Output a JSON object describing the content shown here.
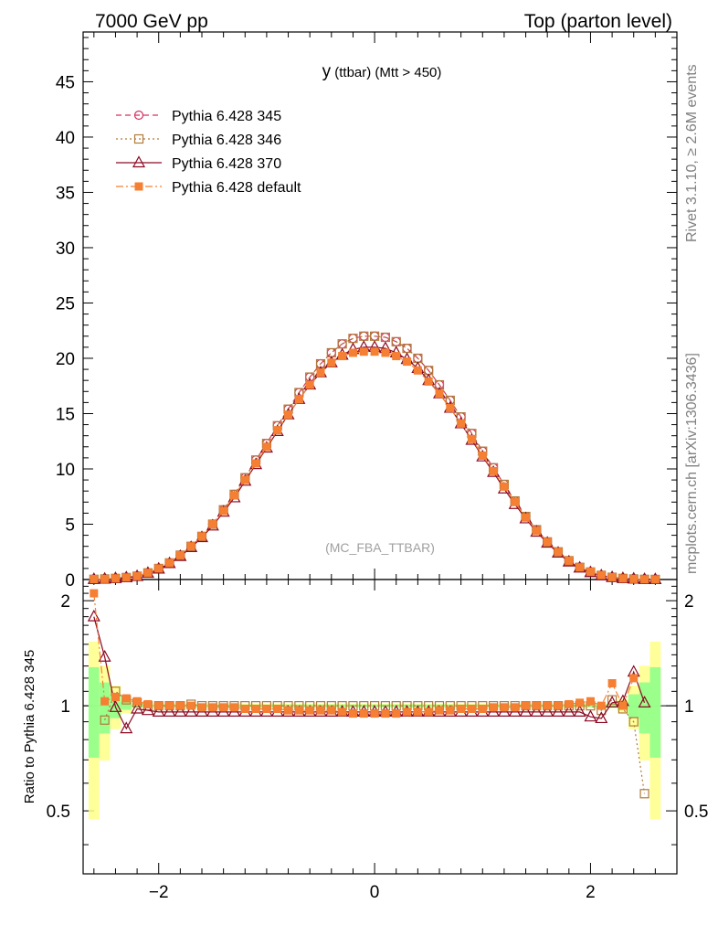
{
  "header": {
    "left": "7000 GeV pp",
    "right": "Top (parton level)"
  },
  "title_main": "y",
  "title_sub": " (ttbar) (Mtt > 450)",
  "watermark": "(MC_FBA_TTBAR)",
  "side_label_top": "Rivet 3.1.10, ≥ 2.6M events",
  "side_label_bottom": "mcplots.cern.ch [arXiv:1306.3436]",
  "ratio_ylabel": "Ratio to Pythia 6.428 345",
  "chart_data": [
    {
      "type": "line",
      "panel": "main",
      "xlim": [
        -2.7,
        2.8
      ],
      "ylim": [
        0,
        49.5
      ],
      "y_ticks": [
        0,
        5,
        10,
        15,
        20,
        25,
        30,
        35,
        40,
        45
      ],
      "legend_position": "top-left",
      "x": [
        -2.6,
        -2.5,
        -2.4,
        -2.3,
        -2.2,
        -2.1,
        -2.0,
        -1.9,
        -1.8,
        -1.7,
        -1.6,
        -1.5,
        -1.4,
        -1.3,
        -1.2,
        -1.1,
        -1.0,
        -0.9,
        -0.8,
        -0.7,
        -0.6,
        -0.5,
        -0.4,
        -0.3,
        -0.2,
        -0.1,
        0.0,
        0.1,
        0.2,
        0.3,
        0.4,
        0.5,
        0.6,
        0.7,
        0.8,
        0.9,
        1.0,
        1.1,
        1.2,
        1.3,
        1.4,
        1.5,
        1.6,
        1.7,
        1.8,
        1.9,
        2.0,
        2.1,
        2.2,
        2.3,
        2.4,
        2.5,
        2.6
      ],
      "series": [
        {
          "name": "Pythia 6.428 345",
          "color": "#d6305f",
          "marker": "circle-open",
          "dash": "6,4",
          "values": [
            0.02,
            0.05,
            0.1,
            0.18,
            0.3,
            0.6,
            1.0,
            1.5,
            2.2,
            3.0,
            3.9,
            5.0,
            6.3,
            7.7,
            9.2,
            10.8,
            12.3,
            13.9,
            15.4,
            16.9,
            18.3,
            19.5,
            20.5,
            21.3,
            21.8,
            22.0,
            22.0,
            21.9,
            21.5,
            20.9,
            20.0,
            18.9,
            17.6,
            16.2,
            14.7,
            13.2,
            11.6,
            10.1,
            8.6,
            7.1,
            5.7,
            4.5,
            3.4,
            2.5,
            1.7,
            1.1,
            0.68,
            0.38,
            0.2,
            0.1,
            0.05,
            0.02,
            0.01
          ]
        },
        {
          "name": "Pythia 6.428 346",
          "color": "#b07a3a",
          "marker": "square-open",
          "dash": "2,3",
          "values": [
            0.02,
            0.05,
            0.1,
            0.18,
            0.3,
            0.6,
            1.0,
            1.5,
            2.2,
            3.0,
            3.9,
            5.0,
            6.3,
            7.7,
            9.2,
            10.8,
            12.3,
            13.9,
            15.4,
            16.9,
            18.3,
            19.5,
            20.5,
            21.3,
            21.8,
            22.0,
            22.0,
            21.9,
            21.5,
            20.9,
            20.0,
            18.9,
            17.6,
            16.2,
            14.7,
            13.2,
            11.6,
            10.1,
            8.6,
            7.1,
            5.7,
            4.5,
            3.4,
            2.5,
            1.7,
            1.1,
            0.68,
            0.38,
            0.2,
            0.1,
            0.05,
            0.02,
            0.01
          ]
        },
        {
          "name": "Pythia 6.428 370",
          "color": "#8b0a22",
          "marker": "triangle-open",
          "dash": "",
          "values": [
            0.02,
            0.05,
            0.1,
            0.17,
            0.29,
            0.58,
            0.96,
            1.45,
            2.1,
            2.9,
            3.8,
            4.85,
            6.1,
            7.4,
            8.9,
            10.4,
            11.9,
            13.4,
            14.9,
            16.3,
            17.6,
            18.7,
            19.6,
            20.3,
            20.8,
            21.0,
            21.0,
            20.9,
            20.5,
            19.9,
            19.1,
            18.0,
            16.8,
            15.5,
            14.1,
            12.6,
            11.1,
            9.7,
            8.2,
            6.8,
            5.5,
            4.3,
            3.3,
            2.4,
            1.6,
            1.05,
            0.64,
            0.35,
            0.19,
            0.1,
            0.06,
            0.02,
            0.01
          ]
        },
        {
          "name": "Pythia 6.428 default",
          "color": "#f57f32",
          "marker": "square-filled",
          "dash": "8,3,2,3",
          "values": [
            0.04,
            0.05,
            0.1,
            0.18,
            0.3,
            0.6,
            1.0,
            1.5,
            2.2,
            3.0,
            3.9,
            5.0,
            6.2,
            7.6,
            9.0,
            10.5,
            12.0,
            13.5,
            14.9,
            16.3,
            17.6,
            18.7,
            19.6,
            20.2,
            20.5,
            20.6,
            20.6,
            20.5,
            20.2,
            19.7,
            18.9,
            17.9,
            16.8,
            15.5,
            14.1,
            12.7,
            11.2,
            9.8,
            8.4,
            7.0,
            5.6,
            4.4,
            3.4,
            2.5,
            1.7,
            1.1,
            0.7,
            0.4,
            0.21,
            0.1,
            0.05,
            0.02,
            0.01
          ]
        }
      ]
    },
    {
      "type": "line",
      "panel": "ratio",
      "xlim": [
        -2.7,
        2.8
      ],
      "ylim": [
        0.33,
        2.3
      ],
      "y_ticks": [
        0.5,
        1,
        2
      ],
      "x_ticks": [
        -2,
        0,
        2
      ],
      "x": [
        -2.6,
        -2.5,
        -2.4,
        -2.3,
        -2.2,
        -2.1,
        -2.0,
        -1.9,
        -1.8,
        -1.7,
        -1.6,
        -1.5,
        -1.4,
        -1.3,
        -1.2,
        -1.1,
        -1.0,
        -0.9,
        -0.8,
        -0.7,
        -0.6,
        -0.5,
        -0.4,
        -0.3,
        -0.2,
        -0.1,
        0.0,
        0.1,
        0.2,
        0.3,
        0.4,
        0.5,
        0.6,
        0.7,
        0.8,
        0.9,
        1.0,
        1.1,
        1.2,
        1.3,
        1.4,
        1.5,
        1.6,
        1.7,
        1.8,
        1.9,
        2.0,
        2.1,
        2.2,
        2.3,
        2.4,
        2.5,
        2.6
      ],
      "series": [
        {
          "name": "Pythia 6.428 346",
          "color": "#b07a3a",
          "marker": "square-open",
          "dash": "2,3",
          "values": [
            null,
            0.91,
            1.1,
            1.04,
            1.02,
            1.0,
            1.0,
            1.0,
            1.0,
            1.01,
            1.0,
            1.0,
            1.0,
            1.0,
            1.0,
            1.0,
            1.0,
            1.0,
            1.0,
            1.0,
            1.0,
            1.0,
            1.0,
            1.0,
            1.0,
            1.0,
            1.0,
            1.0,
            1.0,
            1.0,
            1.0,
            1.0,
            1.0,
            1.0,
            1.0,
            1.0,
            1.0,
            1.0,
            1.0,
            1.0,
            1.0,
            1.0,
            1.0,
            1.0,
            1.0,
            1.0,
            1.0,
            0.97,
            1.04,
            0.98,
            0.9,
            0.56,
            null
          ]
        },
        {
          "name": "Pythia 6.428 370",
          "color": "#8b0a22",
          "marker": "triangle-open",
          "dash": "",
          "values": [
            1.8,
            1.38,
            0.99,
            0.86,
            0.98,
            0.97,
            0.96,
            0.96,
            0.96,
            0.96,
            0.96,
            0.96,
            0.96,
            0.96,
            0.96,
            0.96,
            0.96,
            0.96,
            0.96,
            0.96,
            0.96,
            0.96,
            0.96,
            0.96,
            0.96,
            0.96,
            0.96,
            0.96,
            0.96,
            0.96,
            0.96,
            0.96,
            0.96,
            0.96,
            0.96,
            0.96,
            0.96,
            0.96,
            0.96,
            0.96,
            0.96,
            0.96,
            0.96,
            0.96,
            0.96,
            0.96,
            0.93,
            0.92,
            1.02,
            1.03,
            1.25,
            1.02,
            null
          ]
        },
        {
          "name": "Pythia 6.428 default",
          "color": "#f57f32",
          "marker": "square-filled",
          "dash": "8,3,2,3",
          "values": [
            2.1,
            1.03,
            1.06,
            1.05,
            1.03,
            1.01,
            1.0,
            1.0,
            1.0,
            1.0,
            0.99,
            0.99,
            0.99,
            0.99,
            0.98,
            0.98,
            0.98,
            0.98,
            0.97,
            0.97,
            0.97,
            0.97,
            0.97,
            0.96,
            0.95,
            0.95,
            0.95,
            0.95,
            0.95,
            0.96,
            0.96,
            0.96,
            0.97,
            0.97,
            0.98,
            0.98,
            0.98,
            0.99,
            0.99,
            0.99,
            1.0,
            1.0,
            1.0,
            1.0,
            1.01,
            1.02,
            1.03,
            1.0,
            1.16,
            1.0,
            1.2,
            null,
            null
          ]
        }
      ]
    }
  ]
}
